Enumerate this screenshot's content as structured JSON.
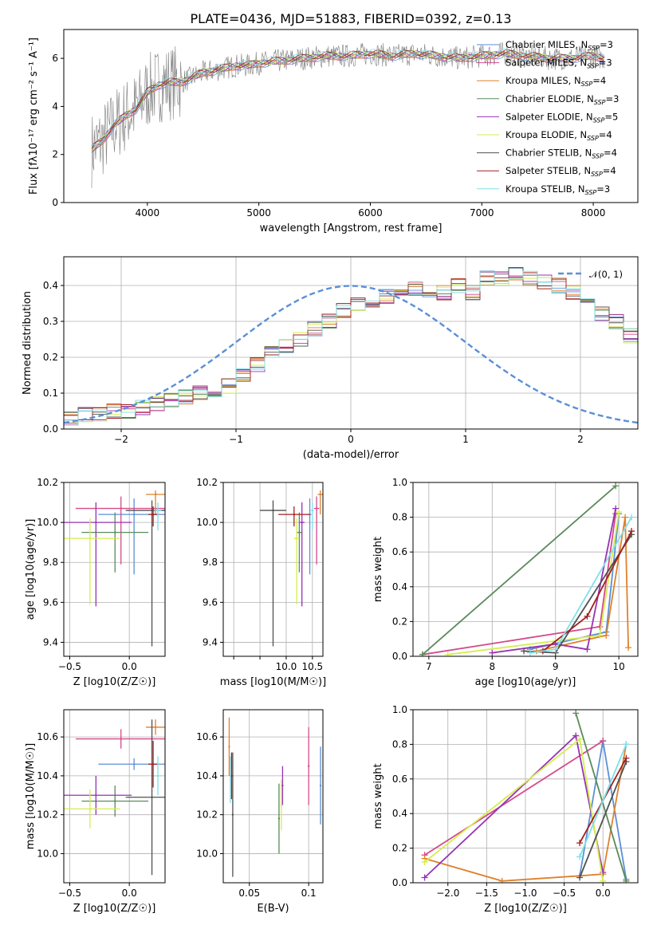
{
  "figure": {
    "title": "PLATE=0436, MJD=51883, FIBERID=0392, z=0.13",
    "colors": {
      "Chabrier MILES": "#5b8fd6",
      "Salpeter MILES": "#d44a8a",
      "Kroupa MILES": "#e0802a",
      "Chabrier ELODIE": "#5a8a5a",
      "Salpeter ELODIE": "#9632b4",
      "Kroupa ELODIE": "#d4ee50",
      "Chabrier STELIB": "#505050",
      "Salpeter STELIB": "#a02020",
      "Kroupa STELIB": "#80e0e8"
    }
  },
  "chart_data": [
    {
      "id": "spectrum",
      "type": "line",
      "xlabel": "wavelength [Angstrom, rest frame]",
      "ylabel": "Flux [fλ10⁻¹⁷ erg cm⁻² s⁻¹ A⁻¹]",
      "xlim": [
        3250,
        8400
      ],
      "ylim": [
        0,
        7.2
      ],
      "xticks": [
        4000,
        5000,
        6000,
        7000,
        8000
      ],
      "yticks": [
        0,
        2,
        4,
        6
      ],
      "observed_flux": {
        "x": [
          3500,
          3600,
          3700,
          3800,
          3900,
          4000,
          4100,
          4200,
          4300,
          4400,
          4500,
          4600,
          4700,
          4800,
          4900,
          5000,
          5200,
          5400,
          5600,
          5800,
          6000,
          6200,
          6400,
          6600,
          6800,
          7000,
          7200,
          7400,
          7600,
          7800,
          8000,
          8100
        ],
        "y": [
          2.2,
          2.6,
          3.2,
          3.6,
          3.9,
          4.6,
          4.9,
          5.0,
          5.0,
          5.2,
          5.4,
          5.5,
          5.6,
          5.7,
          5.7,
          5.8,
          5.9,
          6.0,
          6.1,
          6.1,
          6.2,
          6.1,
          6.2,
          6.1,
          6.0,
          6.1,
          6.2,
          6.1,
          6.0,
          6.0,
          6.1,
          6.0
        ]
      },
      "legend": [
        {
          "label": "Chabrier MILES, N",
          "sub": "SSP",
          "n": "=3"
        },
        {
          "label": "Salpeter MILES, N",
          "sub": "SSP",
          "n": "=3"
        },
        {
          "label": "Kroupa MILES, N",
          "sub": "SSP",
          "n": "=4"
        },
        {
          "label": "Chabrier ELODIE, N",
          "sub": "SSP",
          "n": "=3"
        },
        {
          "label": "Salpeter ELODIE, N",
          "sub": "SSP",
          "n": "=5"
        },
        {
          "label": "Kroupa ELODIE, N",
          "sub": "SSP",
          "n": "=4"
        },
        {
          "label": "Chabrier STELIB, N",
          "sub": "SSP",
          "n": "=4"
        },
        {
          "label": "Salpeter STELIB, N",
          "sub": "SSP",
          "n": "=4"
        },
        {
          "label": "Kroupa STELIB, N",
          "sub": "SSP",
          "n": "=3"
        }
      ],
      "legend_placement": "upper-right"
    },
    {
      "id": "residuals",
      "type": "histogram",
      "xlabel": "(data-model)/error",
      "ylabel": "Normed distribution",
      "xlim": [
        -2.5,
        2.5
      ],
      "ylim": [
        0,
        0.48
      ],
      "xticks": [
        -2,
        -1,
        0,
        1,
        2
      ],
      "yticks": [
        0.0,
        0.1,
        0.2,
        0.3,
        0.4
      ],
      "grid": true,
      "reference_curve": {
        "label": "𝒩(0, 1)",
        "mean": 0,
        "sigma": 1,
        "style": "dashed"
      },
      "bins": {
        "start": -2.5,
        "width": 0.125
      },
      "series_envelope": [
        0.03,
        0.04,
        0.04,
        0.05,
        0.05,
        0.06,
        0.07,
        0.08,
        0.09,
        0.1,
        0.11,
        0.12,
        0.15,
        0.18,
        0.21,
        0.23,
        0.25,
        0.28,
        0.3,
        0.33,
        0.35,
        0.36,
        0.37,
        0.38,
        0.39,
        0.36,
        0.38,
        0.4,
        0.38,
        0.42,
        0.42,
        0.43,
        0.42,
        0.41,
        0.4,
        0.38,
        0.35,
        0.32,
        0.3,
        0.26,
        0.23,
        0.21,
        0.18,
        0.16,
        0.14,
        0.12,
        0.1,
        0.09,
        0.08,
        0.07,
        0.06,
        0.05,
        0.04,
        0.04,
        0.04,
        0.03,
        0.03,
        0.03,
        0.02,
        0.02
      ]
    },
    {
      "id": "age_vs_Z",
      "type": "scatter",
      "xlabel": "Z [log10(Z/Z☉)]",
      "ylabel": "age [log10(age/yr)]",
      "xlim": [
        -0.55,
        0.3
      ],
      "ylim": [
        9.33,
        10.2
      ],
      "xticks": [
        -0.5,
        0.0
      ],
      "yticks": [
        9.4,
        9.6,
        9.8,
        10.0,
        10.2
      ],
      "grid": true,
      "points": [
        {
          "series": "Chabrier MILES",
          "x": 0.04,
          "y": 10.04,
          "xerr": 0.3,
          "yerr_lo": 0.3,
          "yerr_hi": 0.08
        },
        {
          "series": "Salpeter MILES",
          "x": -0.07,
          "y": 10.07,
          "xerr": 0.38,
          "yerr_lo": 0.28,
          "yerr_hi": 0.06
        },
        {
          "series": "Kroupa MILES",
          "x": 0.22,
          "y": 10.14,
          "xerr": 0.08,
          "yerr_lo": 0.1,
          "yerr_hi": 0.02
        },
        {
          "series": "Chabrier ELODIE",
          "x": -0.12,
          "y": 9.95,
          "xerr": 0.28,
          "yerr_lo": 0.2,
          "yerr_hi": 0.1
        },
        {
          "series": "Salpeter ELODIE",
          "x": -0.28,
          "y": 10.0,
          "xerr": 0.3,
          "yerr_lo": 0.42,
          "yerr_hi": 0.1
        },
        {
          "series": "Kroupa ELODIE",
          "x": -0.33,
          "y": 9.92,
          "xerr": 0.25,
          "yerr_lo": 0.33,
          "yerr_hi": 0.1
        },
        {
          "series": "Chabrier STELIB",
          "x": 0.19,
          "y": 10.06,
          "xerr": 0.22,
          "yerr_lo": 0.68,
          "yerr_hi": 0.05
        },
        {
          "series": "Salpeter STELIB",
          "x": 0.2,
          "y": 10.04,
          "xerr": 0.04,
          "yerr_lo": 0.06,
          "yerr_hi": 0.04
        },
        {
          "series": "Kroupa STELIB",
          "x": 0.24,
          "y": 10.06,
          "xerr": 0.03,
          "yerr_lo": 0.1,
          "yerr_hi": 0.04
        }
      ]
    },
    {
      "id": "age_vs_mass",
      "type": "scatter",
      "xlabel": "mass [log10(M/M☉)]",
      "ylabel": "",
      "xlim": [
        8.8,
        10.7
      ],
      "ylim": [
        9.33,
        10.2
      ],
      "xticks": [
        9.0,
        9.5,
        10.0,
        10.5
      ],
      "yticks": [
        9.4,
        9.6,
        9.8,
        10.0,
        10.2
      ],
      "xticklabels_shown": [
        "10.0",
        "10.5"
      ],
      "grid": true,
      "points": [
        {
          "series": "Chabrier MILES",
          "x": 10.45,
          "y": 10.04,
          "xerr": 0.03,
          "yerr_lo": 0.3,
          "yerr_hi": 0.08
        },
        {
          "series": "Salpeter MILES",
          "x": 10.58,
          "y": 10.07,
          "xerr": 0.05,
          "yerr_lo": 0.28,
          "yerr_hi": 0.06
        },
        {
          "series": "Kroupa MILES",
          "x": 10.65,
          "y": 10.14,
          "xerr": 0.05,
          "yerr_lo": 0.1,
          "yerr_hi": 0.02
        },
        {
          "series": "Chabrier ELODIE",
          "x": 10.25,
          "y": 9.95,
          "xerr": 0.05,
          "yerr_lo": 0.2,
          "yerr_hi": 0.1
        },
        {
          "series": "Salpeter ELODIE",
          "x": 10.3,
          "y": 10.0,
          "xerr": 0.05,
          "yerr_lo": 0.42,
          "yerr_hi": 0.1
        },
        {
          "series": "Kroupa ELODIE",
          "x": 10.2,
          "y": 9.92,
          "xerr": 0.05,
          "yerr_lo": 0.33,
          "yerr_hi": 0.1
        },
        {
          "series": "Chabrier STELIB",
          "x": 9.75,
          "y": 10.06,
          "xerr": 0.25,
          "yerr_lo": 0.68,
          "yerr_hi": 0.05
        },
        {
          "series": "Salpeter STELIB",
          "x": 10.15,
          "y": 10.04,
          "xerr": 0.3,
          "yerr_lo": 0.06,
          "yerr_hi": 0.04
        },
        {
          "series": "Kroupa STELIB",
          "x": 10.5,
          "y": 10.06,
          "xerr": 0.03,
          "yerr_lo": 0.1,
          "yerr_hi": 0.04
        }
      ]
    },
    {
      "id": "weight_vs_age",
      "type": "line",
      "xlabel": "age [log10(age/yr)]",
      "ylabel": "mass weight",
      "xlim": [
        6.75,
        10.3
      ],
      "ylim": [
        0,
        1.0
      ],
      "xticks": [
        7,
        8,
        9,
        10
      ],
      "yticks": [
        0.0,
        0.2,
        0.4,
        0.6,
        0.8,
        1.0
      ],
      "grid": true,
      "series": [
        {
          "name": "Chabrier MILES",
          "x": [
            8.6,
            9.8,
            10.0
          ],
          "y": [
            0.04,
            0.14,
            0.82
          ]
        },
        {
          "name": "Salpeter MILES",
          "x": [
            6.9,
            9.7,
            9.95
          ],
          "y": [
            0.01,
            0.17,
            0.82
          ]
        },
        {
          "name": "Kroupa MILES",
          "x": [
            8.7,
            9.8,
            10.1,
            10.15
          ],
          "y": [
            0.03,
            0.12,
            0.8,
            0.05
          ]
        },
        {
          "name": "Chabrier ELODIE",
          "x": [
            6.9,
            9.95
          ],
          "y": [
            0.01,
            0.98
          ]
        },
        {
          "name": "Salpeter ELODIE",
          "x": [
            8.0,
            9.0,
            9.5,
            9.95
          ],
          "y": [
            0.02,
            0.07,
            0.04,
            0.85
          ]
        },
        {
          "name": "Kroupa ELODIE",
          "x": [
            7.3,
            9.7,
            10.0
          ],
          "y": [
            0.01,
            0.12,
            0.83
          ]
        },
        {
          "name": "Chabrier STELIB",
          "x": [
            8.5,
            9.0,
            10.2
          ],
          "y": [
            0.03,
            0.02,
            0.7
          ]
        },
        {
          "name": "Salpeter STELIB",
          "x": [
            8.8,
            9.5,
            10.2
          ],
          "y": [
            0.03,
            0.23,
            0.72
          ]
        },
        {
          "name": "Kroupa STELIB",
          "x": [
            8.6,
            9.0,
            10.2
          ],
          "y": [
            0.02,
            0.04,
            0.8
          ]
        }
      ]
    },
    {
      "id": "mass_vs_Z",
      "type": "scatter",
      "xlabel": "Z [log10(Z/Z☉)]",
      "ylabel": "mass [log10(M/M☉)]",
      "xlim": [
        -0.55,
        0.3
      ],
      "ylim": [
        9.85,
        10.74
      ],
      "xticks": [
        -0.5,
        0.0
      ],
      "yticks": [
        10.0,
        10.2,
        10.4,
        10.6
      ],
      "grid": true,
      "points": [
        {
          "series": "Chabrier MILES",
          "x": 0.04,
          "y": 10.46,
          "xerr": 0.3,
          "yerr": 0.03
        },
        {
          "series": "Salpeter MILES",
          "x": -0.07,
          "y": 10.59,
          "xerr": 0.38,
          "yerr": 0.05
        },
        {
          "series": "Kroupa MILES",
          "x": 0.22,
          "y": 10.65,
          "xerr": 0.08,
          "yerr": 0.04
        },
        {
          "series": "Chabrier ELODIE",
          "x": -0.12,
          "y": 10.27,
          "xerr": 0.28,
          "yerr": 0.08
        },
        {
          "series": "Salpeter ELODIE",
          "x": -0.28,
          "y": 10.3,
          "xerr": 0.3,
          "yerr": 0.1
        },
        {
          "series": "Kroupa ELODIE",
          "x": -0.33,
          "y": 10.23,
          "xerr": 0.25,
          "yerr": 0.1
        },
        {
          "series": "Chabrier STELIB",
          "x": 0.19,
          "y": 10.29,
          "xerr": 0.22,
          "yerr": 0.4
        },
        {
          "series": "Salpeter STELIB",
          "x": 0.2,
          "y": 10.46,
          "xerr": 0.04,
          "yerr": 0.12
        },
        {
          "series": "Kroupa STELIB",
          "x": 0.24,
          "y": 10.4,
          "xerr": 0.03,
          "yerr": 0.1
        }
      ]
    },
    {
      "id": "mass_vs_EBV",
      "type": "scatter",
      "xlabel": "E(B-V)",
      "ylabel": "",
      "xlim": [
        0.028,
        0.112
      ],
      "ylim": [
        9.85,
        10.74
      ],
      "xticks": [
        0.05,
        0.1
      ],
      "yticks": [
        10.0,
        10.2,
        10.4,
        10.6
      ],
      "grid": true,
      "points": [
        {
          "series": "Chabrier MILES",
          "x": 0.11,
          "y": 10.35,
          "yerr": 0.2
        },
        {
          "series": "Salpeter MILES",
          "x": 0.1,
          "y": 10.45,
          "yerr": 0.2
        },
        {
          "series": "Kroupa MILES",
          "x": 0.033,
          "y": 10.55,
          "yerr": 0.15
        },
        {
          "series": "Chabrier ELODIE",
          "x": 0.075,
          "y": 10.18,
          "yerr": 0.18
        },
        {
          "series": "Salpeter ELODIE",
          "x": 0.078,
          "y": 10.35,
          "yerr": 0.1
        },
        {
          "series": "Kroupa ELODIE",
          "x": 0.077,
          "y": 10.25,
          "yerr": 0.13
        },
        {
          "series": "Chabrier STELIB",
          "x": 0.036,
          "y": 10.2,
          "yerr": 0.32
        },
        {
          "series": "Salpeter STELIB",
          "x": 0.035,
          "y": 10.4,
          "yerr": 0.12
        },
        {
          "series": "Kroupa STELIB",
          "x": 0.034,
          "y": 10.38,
          "yerr": 0.12
        }
      ]
    },
    {
      "id": "weight_vs_Z",
      "type": "line",
      "xlabel": "Z [log10(Z/Z☉)]",
      "ylabel": "mass weight",
      "xlim": [
        -2.45,
        0.45
      ],
      "ylim": [
        0,
        1.0
      ],
      "xticks": [
        -2.0,
        -1.5,
        -1.0,
        -0.5,
        0.0
      ],
      "yticks": [
        0.0,
        0.2,
        0.4,
        0.6,
        0.8,
        1.0
      ],
      "grid": true,
      "series": [
        {
          "name": "Chabrier MILES",
          "x": [
            -0.3,
            0.0,
            0.3
          ],
          "y": [
            0.04,
            0.82,
            0.02
          ]
        },
        {
          "name": "Salpeter MILES",
          "x": [
            -2.3,
            0.0
          ],
          "y": [
            0.16,
            0.82
          ]
        },
        {
          "name": "Kroupa MILES",
          "x": [
            -2.3,
            -1.3,
            -0.3,
            0.0,
            0.3
          ],
          "y": [
            0.14,
            0.01,
            0.04,
            0.05,
            0.8
          ]
        },
        {
          "name": "Chabrier ELODIE",
          "x": [
            -0.35,
            0.3
          ],
          "y": [
            0.98,
            0.01
          ]
        },
        {
          "name": "Salpeter ELODIE",
          "x": [
            -2.3,
            -0.35,
            0.0
          ],
          "y": [
            0.03,
            0.85,
            0.06
          ]
        },
        {
          "name": "Kroupa ELODIE",
          "x": [
            -2.3,
            -0.3,
            0.0
          ],
          "y": [
            0.12,
            0.83,
            0.01
          ]
        },
        {
          "name": "Chabrier STELIB",
          "x": [
            -0.3,
            0.3
          ],
          "y": [
            0.03,
            0.7
          ]
        },
        {
          "name": "Salpeter STELIB",
          "x": [
            -0.3,
            0.3
          ],
          "y": [
            0.23,
            0.72
          ]
        },
        {
          "name": "Kroupa STELIB",
          "x": [
            -0.3,
            0.3
          ],
          "y": [
            0.15,
            0.8
          ]
        }
      ]
    }
  ]
}
